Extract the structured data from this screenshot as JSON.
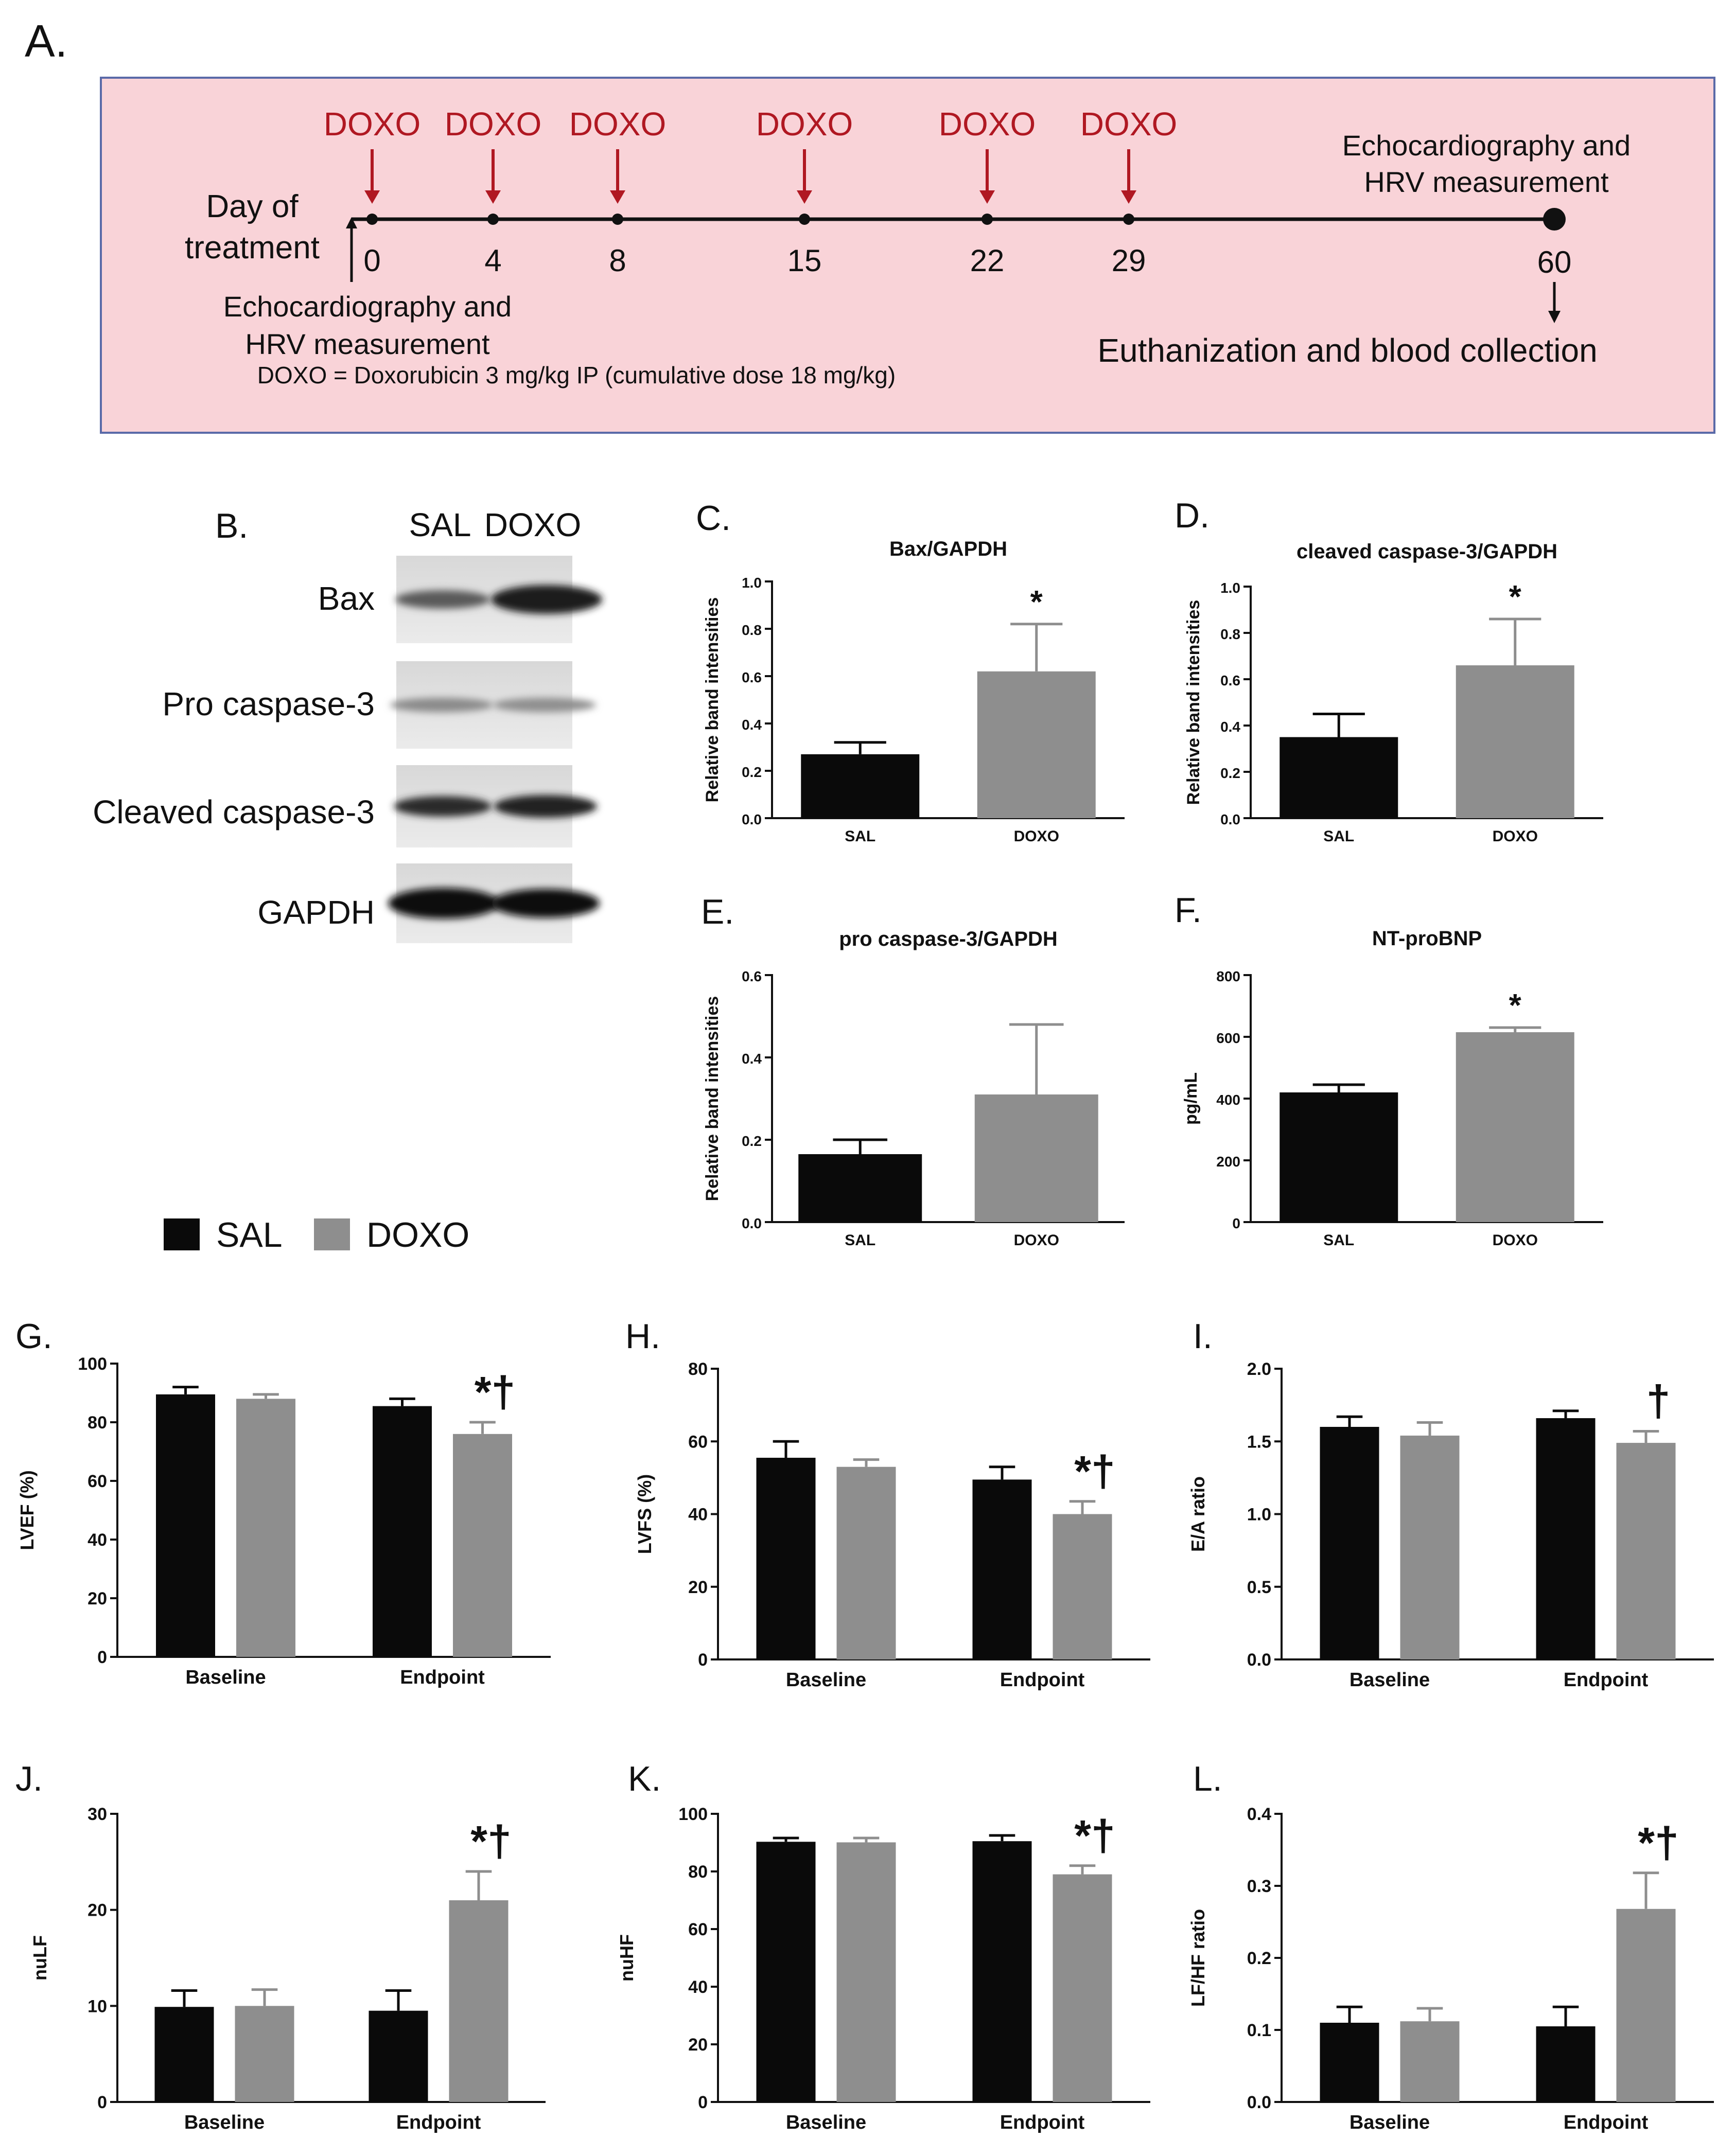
{
  "timeline": {
    "panel_label": "A.",
    "drug_label": "DOXO",
    "doses": [
      "DOXO",
      "DOXO",
      "DOXO",
      "DOXO",
      "DOXO",
      "DOXO"
    ],
    "dose_days": [
      0,
      4,
      8,
      15,
      22,
      29
    ],
    "days": [
      "0",
      "4",
      "8",
      "15",
      "22",
      "29",
      "60"
    ],
    "day_axis_label_line1": "Day of",
    "day_axis_label_line2": "treatment",
    "start_note_line1": "Echocardiography and",
    "start_note_line2": "HRV measurement",
    "end_note_line1": "Echocardiography and",
    "end_note_line2": "HRV measurement",
    "footnote": "DOXO = Doxorubicin 3 mg/kg IP (cumulative dose 18 mg/kg)",
    "end_event": "Euthanization and blood collection",
    "colors": {
      "background": "#f9d3d8",
      "border": "#5a6aa8",
      "dose": "#b01822"
    }
  },
  "western_blot": {
    "panel_label": "B.",
    "columns": [
      "SAL",
      "DOXO"
    ],
    "rows": [
      "Bax",
      "Pro caspase-3",
      "Cleaved caspase-3",
      "GAPDH"
    ]
  },
  "legend": {
    "items": [
      {
        "label": "SAL",
        "color": "#0a0a0a"
      },
      {
        "label": "DOXO",
        "color": "#8e8e8e"
      }
    ]
  },
  "chart_data": [
    {
      "panel": "C.",
      "type": "bar",
      "title": "Bax/GAPDH",
      "ylabel": "Relative band intensities",
      "categories": [
        "SAL",
        "DOXO"
      ],
      "values": [
        0.27,
        0.62
      ],
      "errors": [
        0.05,
        0.2
      ],
      "ylim": [
        0,
        1.0
      ],
      "yticks": [
        "0.0",
        "0.2",
        "0.4",
        "0.6",
        "0.8",
        "1.0"
      ],
      "annotations": [
        "",
        "*"
      ]
    },
    {
      "panel": "D.",
      "type": "bar",
      "title": "cleaved caspase-3/GAPDH",
      "ylabel": "Relative band intensities",
      "categories": [
        "SAL",
        "DOXO"
      ],
      "values": [
        0.35,
        0.66
      ],
      "errors": [
        0.1,
        0.2
      ],
      "ylim": [
        0,
        1.0
      ],
      "yticks": [
        "0.0",
        "0.2",
        "0.4",
        "0.6",
        "0.8",
        "1.0"
      ],
      "annotations": [
        "",
        "*"
      ]
    },
    {
      "panel": "E.",
      "type": "bar",
      "title": "pro caspase-3/GAPDH",
      "ylabel": "Relative band intensities",
      "categories": [
        "SAL",
        "DOXO"
      ],
      "values": [
        0.165,
        0.31
      ],
      "errors": [
        0.035,
        0.17
      ],
      "ylim": [
        0,
        0.6
      ],
      "yticks": [
        "0.0",
        "0.2",
        "0.4",
        "0.6"
      ],
      "annotations": [
        "",
        ""
      ]
    },
    {
      "panel": "F.",
      "type": "bar",
      "title": "NT-proBNP",
      "ylabel": "pg/mL",
      "categories": [
        "SAL",
        "DOXO"
      ],
      "values": [
        420,
        615
      ],
      "errors": [
        25,
        15
      ],
      "ylim": [
        0,
        800
      ],
      "yticks": [
        "0",
        "200",
        "400",
        "600",
        "800"
      ],
      "annotations": [
        "",
        "*"
      ]
    },
    {
      "panel": "G.",
      "type": "bar",
      "title": "",
      "ylabel": "LVEF (%)",
      "categories": [
        "Baseline",
        "Endpoint"
      ],
      "series": [
        {
          "name": "SAL",
          "values": [
            89.5,
            85.5
          ],
          "errors": [
            2.5,
            2.5
          ]
        },
        {
          "name": "DOXO",
          "values": [
            88,
            76
          ],
          "errors": [
            1.5,
            4
          ]
        }
      ],
      "ylim": [
        0,
        100
      ],
      "yticks": [
        "0",
        "20",
        "40",
        "60",
        "80",
        "100"
      ],
      "annotation": "*†"
    },
    {
      "panel": "H.",
      "type": "bar",
      "title": "",
      "ylabel": "LVFS (%)",
      "categories": [
        "Baseline",
        "Endpoint"
      ],
      "series": [
        {
          "name": "SAL",
          "values": [
            55.5,
            49.5
          ],
          "errors": [
            4.5,
            3.5
          ]
        },
        {
          "name": "DOXO",
          "values": [
            53,
            40
          ],
          "errors": [
            2,
            3.5
          ]
        }
      ],
      "ylim": [
        0,
        80
      ],
      "yticks": [
        "0",
        "20",
        "40",
        "60",
        "80"
      ],
      "annotation": "*†"
    },
    {
      "panel": "I.",
      "type": "bar",
      "title": "",
      "ylabel": "E/A ratio",
      "categories": [
        "Baseline",
        "Endpoint"
      ],
      "series": [
        {
          "name": "SAL",
          "values": [
            1.6,
            1.66
          ],
          "errors": [
            0.07,
            0.05
          ]
        },
        {
          "name": "DOXO",
          "values": [
            1.54,
            1.49
          ],
          "errors": [
            0.09,
            0.08
          ]
        }
      ],
      "ylim": [
        0,
        2.0
      ],
      "yticks": [
        "0.0",
        "0.5",
        "1.0",
        "1.5",
        "2.0"
      ],
      "annotation": "†"
    },
    {
      "panel": "J.",
      "type": "bar",
      "title": "",
      "ylabel": "nuLF",
      "categories": [
        "Baseline",
        "Endpoint"
      ],
      "series": [
        {
          "name": "SAL",
          "values": [
            9.9,
            9.5
          ],
          "errors": [
            1.7,
            2.1
          ]
        },
        {
          "name": "DOXO",
          "values": [
            10,
            21
          ],
          "errors": [
            1.7,
            3
          ]
        }
      ],
      "ylim": [
        0,
        30
      ],
      "yticks": [
        "0",
        "10",
        "20",
        "30"
      ],
      "annotation": "*†"
    },
    {
      "panel": "K.",
      "type": "bar",
      "title": "",
      "ylabel": "nuHF",
      "categories": [
        "Baseline",
        "Endpoint"
      ],
      "series": [
        {
          "name": "SAL",
          "values": [
            90.3,
            90.5
          ],
          "errors": [
            1.3,
            2
          ]
        },
        {
          "name": "DOXO",
          "values": [
            90.1,
            79
          ],
          "errors": [
            1.5,
            3
          ]
        }
      ],
      "ylim": [
        0,
        100
      ],
      "yticks": [
        "0",
        "20",
        "40",
        "60",
        "80",
        "100"
      ],
      "annotation": "*†"
    },
    {
      "panel": "L.",
      "type": "bar",
      "title": "",
      "ylabel": "LF/HF ratio",
      "categories": [
        "Baseline",
        "Endpoint"
      ],
      "series": [
        {
          "name": "SAL",
          "values": [
            0.11,
            0.105
          ],
          "errors": [
            0.022,
            0.027
          ]
        },
        {
          "name": "DOXO",
          "values": [
            0.112,
            0.268
          ],
          "errors": [
            0.018,
            0.05
          ]
        }
      ],
      "ylim": [
        0,
        0.4
      ],
      "yticks": [
        "0.0",
        "0.1",
        "0.2",
        "0.3",
        "0.4"
      ],
      "annotation": "*†"
    }
  ]
}
